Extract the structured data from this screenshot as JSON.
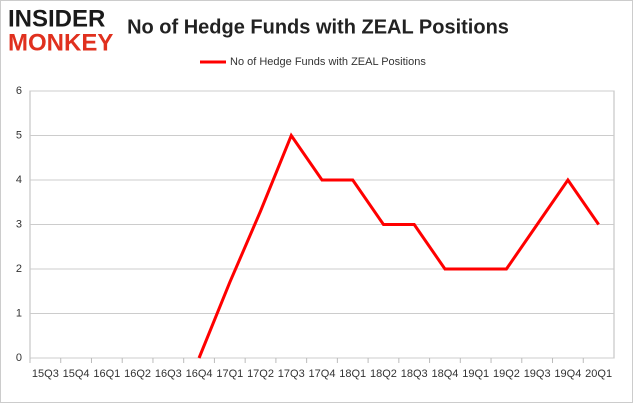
{
  "logo": {
    "line1": "INSIDER",
    "line2": "MONKEY"
  },
  "chart_data": {
    "type": "line",
    "title": "No of Hedge Funds with ZEAL Positions",
    "categories": [
      "15Q3",
      "15Q4",
      "16Q1",
      "16Q2",
      "16Q3",
      "16Q4",
      "17Q1",
      "17Q2",
      "17Q3",
      "17Q4",
      "18Q1",
      "18Q2",
      "18Q3",
      "18Q4",
      "19Q1",
      "19Q2",
      "19Q3",
      "19Q4",
      "20Q1"
    ],
    "series": [
      {
        "name": "No of Hedge Funds with ZEAL Positions",
        "color": "#ff0000",
        "values": [
          null,
          null,
          null,
          null,
          null,
          0,
          1.7,
          3.3,
          5,
          4,
          4,
          3,
          3,
          2,
          2,
          2,
          3,
          4,
          3
        ]
      }
    ],
    "ylim": [
      0,
      6
    ],
    "yticks": [
      0,
      1,
      2,
      3,
      4,
      5,
      6
    ],
    "grid": true,
    "legend": "top"
  }
}
